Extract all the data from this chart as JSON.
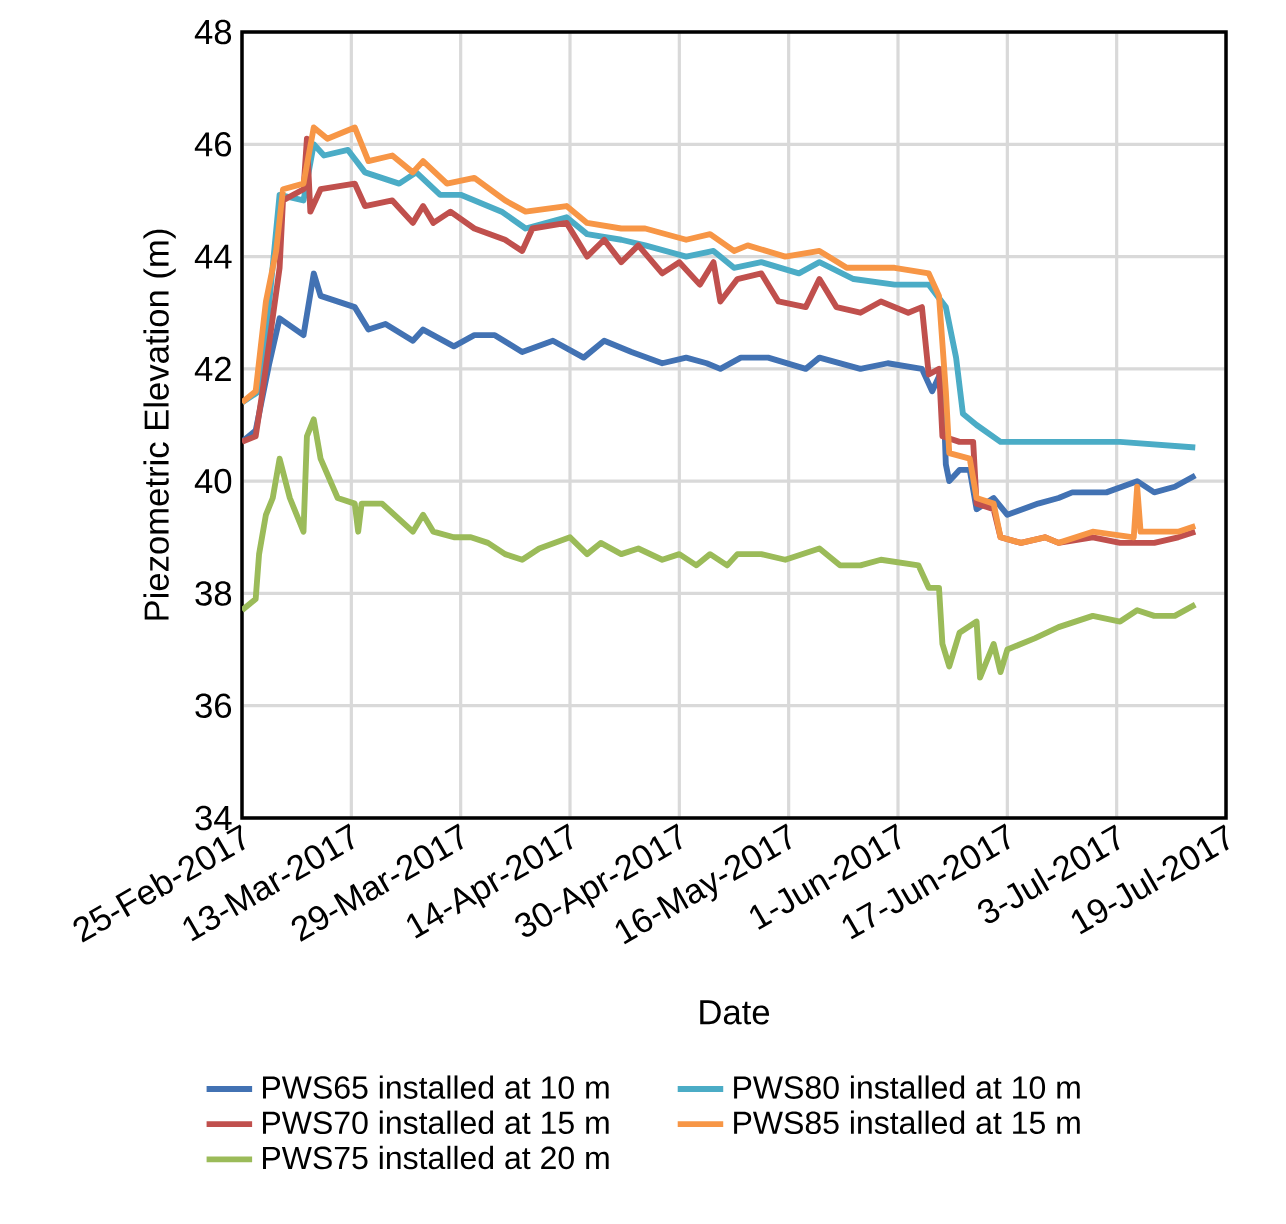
{
  "chart_data": {
    "type": "line",
    "xlabel": "Date",
    "ylabel": "Piezometric Elevation (m)",
    "xlim": [
      "2017-02-25",
      "2017-07-19"
    ],
    "ylim": [
      34,
      48
    ],
    "yticks": [
      34,
      36,
      38,
      40,
      42,
      44,
      46,
      48
    ],
    "xticks": [
      {
        "value": "2017-02-25",
        "label": "25-Feb-2017"
      },
      {
        "value": "2017-03-13",
        "label": "13-Mar-2017"
      },
      {
        "value": "2017-03-29",
        "label": "29-Mar-2017"
      },
      {
        "value": "2017-04-14",
        "label": "14-Apr-2017"
      },
      {
        "value": "2017-04-30",
        "label": "30-Apr-2017"
      },
      {
        "value": "2017-05-16",
        "label": "16-May-2017"
      },
      {
        "value": "2017-06-01",
        "label": "1-Jun-2017"
      },
      {
        "value": "2017-06-17",
        "label": "17-Jun-2017"
      },
      {
        "value": "2017-07-03",
        "label": "3-Jul-2017"
      },
      {
        "value": "2017-07-19",
        "label": "19-Jul-2017"
      }
    ],
    "grid": true,
    "legend": "bottom",
    "series": [
      {
        "name": "PWS65 installed at 10 m",
        "color": "#4272b3",
        "x": [
          "2017-02-25",
          "2017-02-27",
          "2017-03-01",
          "2017-03-02T12:00",
          "2017-03-06",
          "2017-03-07T12:00",
          "2017-03-08T12:00",
          "2017-03-13T12:00",
          "2017-03-15T12:00",
          "2017-03-18",
          "2017-03-22",
          "2017-03-23T12:00",
          "2017-03-28",
          "2017-03-31",
          "2017-04-03",
          "2017-04-07",
          "2017-04-11T12:00",
          "2017-04-16",
          "2017-04-19",
          "2017-04-23",
          "2017-04-27T12:00",
          "2017-05-01",
          "2017-05-04",
          "2017-05-06",
          "2017-05-09",
          "2017-05-13",
          "2017-05-18T12:00",
          "2017-05-20T12:00",
          "2017-05-26T12:00",
          "2017-05-30T12:00",
          "2017-06-04T12:00",
          "2017-06-06",
          "2017-06-07T12:00",
          "2017-06-08",
          "2017-06-08T12:00",
          "2017-06-10",
          "2017-06-11T12:00",
          "2017-06-12T12:00",
          "2017-06-15",
          "2017-06-17",
          "2017-06-21T12:00",
          "2017-06-24T12:00",
          "2017-06-26T12:00",
          "2017-07-01T12:00",
          "2017-07-06",
          "2017-07-08T12:00",
          "2017-07-11T12:00",
          "2017-07-14T12:00"
        ],
        "values": [
          40.7,
          40.9,
          42.1,
          42.9,
          42.6,
          43.7,
          43.3,
          43.1,
          42.7,
          42.8,
          42.5,
          42.7,
          42.4,
          42.6,
          42.6,
          42.3,
          42.5,
          42.2,
          42.5,
          42.3,
          42.1,
          42.2,
          42.1,
          42.0,
          42.2,
          42.2,
          42.0,
          42.2,
          42.0,
          42.1,
          42.0,
          41.6,
          42.0,
          40.3,
          40.0,
          40.2,
          40.2,
          39.5,
          39.7,
          39.4,
          39.6,
          39.7,
          39.8,
          39.8,
          40.0,
          39.8,
          39.9,
          40.1
        ]
      },
      {
        "name": "PWS80 installed at 10 m",
        "color": "#4bacc6",
        "x": [
          "2017-02-25",
          "2017-02-27T12:00",
          "2017-03-01",
          "2017-03-02T12:00",
          "2017-03-06",
          "2017-03-07T12:00",
          "2017-03-09",
          "2017-03-12T12:00",
          "2017-03-15",
          "2017-03-20",
          "2017-03-22T12:00",
          "2017-03-26",
          "2017-03-29",
          "2017-04-04",
          "2017-04-07T12:00",
          "2017-04-13T12:00",
          "2017-04-16T12:00",
          "2017-04-21T12:00",
          "2017-04-25",
          "2017-05-01",
          "2017-05-05",
          "2017-05-08",
          "2017-05-12",
          "2017-05-17T12:00",
          "2017-05-20T12:00",
          "2017-05-25T12:00",
          "2017-05-31T12:00",
          "2017-06-05T12:00",
          "2017-06-08",
          "2017-06-09T12:00",
          "2017-06-10T12:00",
          "2017-06-12T12:00",
          "2017-06-16",
          "2017-06-23T12:00",
          "2017-07-03T12:00",
          "2017-07-14T12:00"
        ],
        "values": [
          41.4,
          41.6,
          43.2,
          45.1,
          45.0,
          46.0,
          45.8,
          45.9,
          45.5,
          45.3,
          45.5,
          45.1,
          45.1,
          44.8,
          44.5,
          44.7,
          44.4,
          44.3,
          44.2,
          44.0,
          44.1,
          43.8,
          43.9,
          43.7,
          43.9,
          43.6,
          43.5,
          43.5,
          43.1,
          42.2,
          41.2,
          41.0,
          40.7,
          40.7,
          40.7,
          40.6
        ]
      },
      {
        "name": "PWS70 installed at 15 m",
        "color": "#c0504d",
        "x": [
          "2017-02-25",
          "2017-02-27",
          "2017-02-28",
          "2017-03-02T12:00",
          "2017-03-03",
          "2017-03-06",
          "2017-03-06T12:00",
          "2017-03-07",
          "2017-03-08T12:00",
          "2017-03-13T12:00",
          "2017-03-15",
          "2017-03-19",
          "2017-03-22",
          "2017-03-23T12:00",
          "2017-03-25",
          "2017-03-27T12:00",
          "2017-03-31",
          "2017-04-04T12:00",
          "2017-04-07",
          "2017-04-08T12:00",
          "2017-04-13T12:00",
          "2017-04-16T12:00",
          "2017-04-19",
          "2017-04-21T12:00",
          "2017-04-24",
          "2017-04-27T12:00",
          "2017-04-30",
          "2017-05-03",
          "2017-05-05",
          "2017-05-06",
          "2017-05-08T12:00",
          "2017-05-12",
          "2017-05-14T12:00",
          "2017-05-18T12:00",
          "2017-05-20T12:00",
          "2017-05-23",
          "2017-05-26T12:00",
          "2017-05-29T12:00",
          "2017-06-02T12:00",
          "2017-06-04T12:00",
          "2017-06-05T12:00",
          "2017-06-07",
          "2017-06-07T12:00",
          "2017-06-10",
          "2017-06-12",
          "2017-06-12T12:00",
          "2017-06-15",
          "2017-06-16",
          "2017-06-19",
          "2017-06-22T12:00",
          "2017-06-24T12:00",
          "2017-06-29T12:00",
          "2017-07-03T12:00",
          "2017-07-08T12:00",
          "2017-07-12",
          "2017-07-14T12:00"
        ],
        "values": [
          40.7,
          40.8,
          41.6,
          43.8,
          45.0,
          45.2,
          46.1,
          44.8,
          45.2,
          45.3,
          44.9,
          45.0,
          44.6,
          44.9,
          44.6,
          44.8,
          44.5,
          44.3,
          44.1,
          44.5,
          44.6,
          44.0,
          44.3,
          43.9,
          44.2,
          43.7,
          43.9,
          43.5,
          43.9,
          43.2,
          43.6,
          43.7,
          43.2,
          43.1,
          43.6,
          43.1,
          43.0,
          43.2,
          43.0,
          43.1,
          41.9,
          42.0,
          40.8,
          40.7,
          40.7,
          39.6,
          39.5,
          39.0,
          38.9,
          39.0,
          38.9,
          39.0,
          38.9,
          38.9,
          39.0,
          39.1
        ]
      },
      {
        "name": "PWS85 installed at 15 m",
        "color": "#f79646",
        "x": [
          "2017-02-25",
          "2017-02-27",
          "2017-02-28T12:00",
          "2017-03-02",
          "2017-03-03",
          "2017-03-06",
          "2017-03-07T12:00",
          "2017-03-09T12:00",
          "2017-03-13T12:00",
          "2017-03-15T12:00",
          "2017-03-19",
          "2017-03-22",
          "2017-03-23T12:00",
          "2017-03-27",
          "2017-03-31",
          "2017-04-04T12:00",
          "2017-04-07T12:00",
          "2017-04-13T12:00",
          "2017-04-16T12:00",
          "2017-04-21T12:00",
          "2017-04-25",
          "2017-05-01",
          "2017-05-04T12:00",
          "2017-05-08",
          "2017-05-10",
          "2017-05-15T12:00",
          "2017-05-20T12:00",
          "2017-05-24T12:00",
          "2017-05-31T12:00",
          "2017-06-05T12:00",
          "2017-06-07",
          "2017-06-08",
          "2017-06-08T12:00",
          "2017-06-11T12:00",
          "2017-06-12T12:00",
          "2017-06-15",
          "2017-06-16",
          "2017-06-19",
          "2017-06-22T12:00",
          "2017-06-24T12:00",
          "2017-06-29T12:00",
          "2017-07-05T12:00",
          "2017-07-06",
          "2017-07-06T12:00",
          "2017-07-12",
          "2017-07-14T12:00"
        ],
        "values": [
          41.4,
          41.6,
          43.2,
          44.1,
          45.2,
          45.3,
          46.3,
          46.1,
          46.3,
          45.7,
          45.8,
          45.5,
          45.7,
          45.3,
          45.4,
          45.0,
          44.8,
          44.9,
          44.6,
          44.5,
          44.5,
          44.3,
          44.4,
          44.1,
          44.2,
          44.0,
          44.1,
          43.8,
          43.8,
          43.7,
          43.3,
          41.6,
          40.5,
          40.4,
          39.7,
          39.6,
          39.0,
          38.9,
          39.0,
          38.9,
          39.1,
          39.0,
          39.9,
          39.1,
          39.1,
          39.2
        ]
      },
      {
        "name": "PWS75 installed at 20 m",
        "color": "#9bbb59",
        "x": [
          "2017-02-25",
          "2017-02-27",
          "2017-02-27T12:00",
          "2017-02-28T12:00",
          "2017-03-01T12:00",
          "2017-03-02T12:00",
          "2017-03-04",
          "2017-03-06",
          "2017-03-06T12:00",
          "2017-03-07T12:00",
          "2017-03-08T12:00",
          "2017-03-11",
          "2017-03-13T12:00",
          "2017-03-14",
          "2017-03-14T12:00",
          "2017-03-17T12:00",
          "2017-03-22",
          "2017-03-23T12:00",
          "2017-03-25",
          "2017-03-28",
          "2017-03-30T12:00",
          "2017-04-02",
          "2017-04-04T12:00",
          "2017-04-07",
          "2017-04-09T12:00",
          "2017-04-14",
          "2017-04-16T12:00",
          "2017-04-18T12:00",
          "2017-04-21T12:00",
          "2017-04-24",
          "2017-04-27T12:00",
          "2017-04-30",
          "2017-05-02T12:00",
          "2017-05-04T12:00",
          "2017-05-07",
          "2017-05-08T12:00",
          "2017-05-12",
          "2017-05-15T12:00",
          "2017-05-20T12:00",
          "2017-05-23T12:00",
          "2017-05-26T12:00",
          "2017-05-29T12:00",
          "2017-06-04",
          "2017-06-05T12:00",
          "2017-06-07",
          "2017-06-07T12:00",
          "2017-06-08T12:00",
          "2017-06-10",
          "2017-06-12T12:00",
          "2017-06-13",
          "2017-06-15",
          "2017-06-16",
          "2017-06-17",
          "2017-06-21",
          "2017-06-24T12:00",
          "2017-06-29T12:00",
          "2017-07-03T12:00",
          "2017-07-06",
          "2017-07-08T12:00",
          "2017-07-11T12:00",
          "2017-07-14T12:00"
        ],
        "values": [
          37.7,
          37.9,
          38.7,
          39.4,
          39.7,
          40.4,
          39.7,
          39.1,
          40.8,
          41.1,
          40.4,
          39.7,
          39.6,
          39.1,
          39.6,
          39.6,
          39.1,
          39.4,
          39.1,
          39.0,
          39.0,
          38.9,
          38.7,
          38.6,
          38.8,
          39.0,
          38.7,
          38.9,
          38.7,
          38.8,
          38.6,
          38.7,
          38.5,
          38.7,
          38.5,
          38.7,
          38.7,
          38.6,
          38.8,
          38.5,
          38.5,
          38.6,
          38.5,
          38.1,
          38.1,
          37.1,
          36.7,
          37.3,
          37.5,
          36.5,
          37.1,
          36.6,
          37.0,
          37.2,
          37.4,
          37.6,
          37.5,
          37.7,
          37.6,
          37.6,
          37.8
        ]
      }
    ]
  }
}
